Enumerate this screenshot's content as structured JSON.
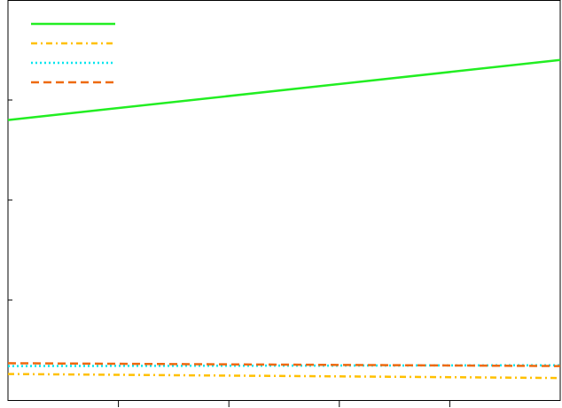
{
  "chart_data": {
    "type": "line",
    "title": "",
    "xlabel": "",
    "ylabel": "",
    "x": [
      0,
      1
    ],
    "xlim": [
      0,
      1
    ],
    "ylim": [
      0,
      1
    ],
    "grid": false,
    "legend_placement": "top-left",
    "series": [
      {
        "values": [
          0.7,
          0.85
        ],
        "color": "#22ee22",
        "style": "solid"
      },
      {
        "values": [
          0.065,
          0.055
        ],
        "color": "#ffc000",
        "style": "dashdot"
      },
      {
        "values": [
          0.085,
          0.087
        ],
        "color": "#00e5ee",
        "style": "dotted"
      },
      {
        "values": [
          0.092,
          0.085
        ],
        "color": "#ee6a10",
        "style": "dashed"
      }
    ]
  }
}
